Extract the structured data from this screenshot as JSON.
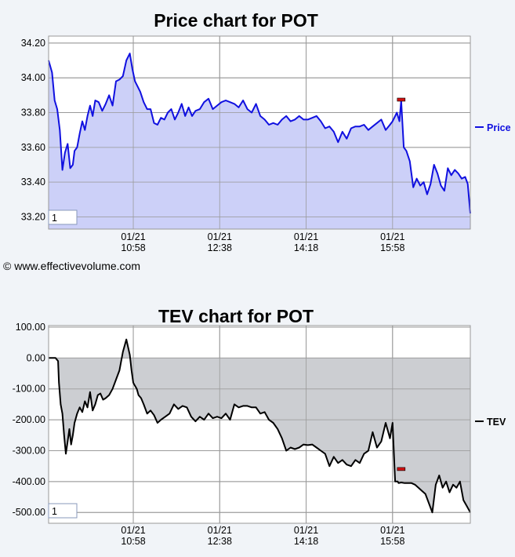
{
  "copyright": "© www.effectivevolume.com",
  "chart_data": [
    {
      "type": "area",
      "title": "Price chart for POT",
      "legend": "Price",
      "legend_position": "right",
      "color": "#1010e0",
      "fill": "#ccd0f8",
      "marker_color": "#d01010",
      "box_label": "1",
      "grid": true,
      "ylim": [
        33.13,
        34.24
      ],
      "y_ticks": [
        "34.20",
        "34.00",
        "33.80",
        "33.60",
        "33.40",
        "33.20"
      ],
      "y_tick_values": [
        34.2,
        34.0,
        33.8,
        33.6,
        33.4,
        33.2
      ],
      "x_tick_labels": [
        [
          "01/21",
          "10:58"
        ],
        [
          "01/21",
          "12:38"
        ],
        [
          "01/21",
          "14:18"
        ],
        [
          "01/21",
          "15:58"
        ]
      ],
      "x_tick_values": [
        98,
        198,
        298,
        398
      ],
      "xlim": [
        0,
        488
      ],
      "marker": {
        "x": 408,
        "y": 33.87
      },
      "series": [
        {
          "x": [
            0,
            4,
            7,
            10,
            13,
            16,
            19,
            22,
            25,
            28,
            30,
            33,
            36,
            39,
            42,
            45,
            48,
            51,
            54,
            58,
            62,
            66,
            70,
            74,
            78,
            82,
            86,
            90,
            94,
            97,
            100,
            103,
            106,
            110,
            114,
            118,
            122,
            126,
            130,
            134,
            138,
            142,
            146,
            150,
            154,
            158,
            162,
            166,
            170,
            175,
            180,
            185,
            190,
            195,
            200,
            205,
            210,
            215,
            220,
            225,
            230,
            235,
            240,
            245,
            250,
            255,
            260,
            265,
            270,
            275,
            280,
            285,
            290,
            295,
            300,
            305,
            310,
            315,
            320,
            325,
            330,
            335,
            340,
            345,
            350,
            355,
            360,
            365,
            370,
            375,
            380,
            385,
            390,
            395,
            398,
            400,
            403,
            406,
            408,
            411,
            414,
            418,
            422,
            426,
            430,
            434,
            438,
            442,
            446,
            450,
            454,
            458,
            462,
            466,
            470,
            474,
            478,
            482,
            485,
            488
          ],
          "y": [
            34.1,
            34.03,
            33.87,
            33.82,
            33.7,
            33.47,
            33.57,
            33.62,
            33.48,
            33.5,
            33.58,
            33.6,
            33.68,
            33.75,
            33.7,
            33.78,
            33.84,
            33.78,
            33.87,
            33.86,
            33.81,
            33.85,
            33.9,
            33.84,
            33.98,
            33.99,
            34.01,
            34.1,
            34.14,
            34.05,
            33.98,
            33.95,
            33.92,
            33.86,
            33.82,
            33.82,
            33.74,
            33.73,
            33.77,
            33.76,
            33.8,
            33.82,
            33.76,
            33.8,
            33.85,
            33.78,
            33.83,
            33.78,
            33.81,
            33.82,
            33.86,
            33.88,
            33.82,
            33.84,
            33.86,
            33.87,
            33.86,
            33.85,
            33.83,
            33.87,
            33.82,
            33.8,
            33.85,
            33.78,
            33.76,
            33.73,
            33.74,
            33.73,
            33.76,
            33.78,
            33.75,
            33.76,
            33.78,
            33.76,
            33.76,
            33.77,
            33.78,
            33.75,
            33.71,
            33.72,
            33.69,
            33.63,
            33.69,
            33.65,
            33.71,
            33.72,
            33.72,
            33.73,
            33.7,
            33.72,
            33.74,
            33.76,
            33.7,
            33.73,
            33.75,
            33.77,
            33.8,
            33.75,
            33.87,
            33.6,
            33.58,
            33.52,
            33.37,
            33.42,
            33.38,
            33.4,
            33.33,
            33.39,
            33.5,
            33.45,
            33.38,
            33.35,
            33.48,
            33.44,
            33.47,
            33.45,
            33.42,
            33.43,
            33.39,
            33.22
          ]
        }
      ]
    },
    {
      "type": "area",
      "title": "TEV chart for POT",
      "legend": "TEV",
      "legend_position": "right",
      "color": "#000000",
      "fill": "#ccced2",
      "marker_color": "#d01010",
      "box_label": "1",
      "grid": true,
      "ylim": [
        -535,
        105
      ],
      "y_ticks": [
        "100.00",
        "0.00",
        "-100.00",
        "-200.00",
        "-300.00",
        "-400.00",
        "-500.00"
      ],
      "y_tick_values": [
        100,
        0,
        -100,
        -200,
        -300,
        -400,
        -500
      ],
      "x_tick_labels": [
        [
          "01/21",
          "10:58"
        ],
        [
          "01/21",
          "12:38"
        ],
        [
          "01/21",
          "14:18"
        ],
        [
          "01/21",
          "15:58"
        ]
      ],
      "x_tick_values": [
        98,
        198,
        298,
        398
      ],
      "xlim": [
        0,
        488
      ],
      "marker": {
        "x": 408,
        "y": -362
      },
      "series": [
        {
          "x": [
            0,
            4,
            8,
            11,
            12,
            14,
            16,
            18,
            20,
            22,
            24,
            26,
            28,
            30,
            33,
            36,
            39,
            42,
            45,
            48,
            51,
            54,
            57,
            60,
            63,
            66,
            70,
            74,
            78,
            82,
            86,
            90,
            94,
            96,
            98,
            100,
            102,
            104,
            107,
            110,
            114,
            118,
            122,
            126,
            130,
            135,
            140,
            145,
            150,
            155,
            160,
            165,
            170,
            175,
            180,
            185,
            190,
            195,
            200,
            205,
            210,
            215,
            220,
            225,
            230,
            235,
            240,
            245,
            250,
            255,
            260,
            265,
            270,
            275,
            280,
            285,
            290,
            295,
            300,
            305,
            310,
            315,
            320,
            325,
            330,
            335,
            340,
            345,
            350,
            355,
            360,
            365,
            370,
            375,
            380,
            385,
            390,
            395,
            398,
            401,
            404,
            405,
            408,
            412,
            416,
            420,
            424,
            428,
            432,
            436,
            440,
            444,
            448,
            452,
            456,
            460,
            464,
            468,
            472,
            476,
            480,
            484,
            488
          ],
          "y": [
            0,
            0,
            0,
            -10,
            -80,
            -150,
            -180,
            -250,
            -310,
            -270,
            -230,
            -280,
            -250,
            -210,
            -180,
            -160,
            -175,
            -140,
            -160,
            -110,
            -170,
            -150,
            -120,
            -115,
            -135,
            -130,
            -120,
            -100,
            -70,
            -40,
            20,
            60,
            10,
            -40,
            -80,
            -90,
            -100,
            -120,
            -130,
            -150,
            -180,
            -170,
            -185,
            -210,
            -200,
            -190,
            -180,
            -150,
            -165,
            -155,
            -160,
            -190,
            -205,
            -190,
            -200,
            -180,
            -195,
            -190,
            -195,
            -180,
            -200,
            -150,
            -160,
            -155,
            -155,
            -160,
            -160,
            -180,
            -175,
            -200,
            -210,
            -230,
            -260,
            -300,
            -290,
            -295,
            -290,
            -280,
            -282,
            -280,
            -290,
            -300,
            -310,
            -350,
            -320,
            -340,
            -330,
            -345,
            -350,
            -330,
            -340,
            -310,
            -300,
            -240,
            -290,
            -270,
            -210,
            -260,
            -210,
            -400,
            -400,
            -405,
            -403,
            -405,
            -405,
            -405,
            -410,
            -420,
            -430,
            -440,
            -470,
            -500,
            -410,
            -380,
            -420,
            -400,
            -435,
            -410,
            -420,
            -400,
            -460,
            -480,
            -500
          ]
        }
      ]
    }
  ]
}
